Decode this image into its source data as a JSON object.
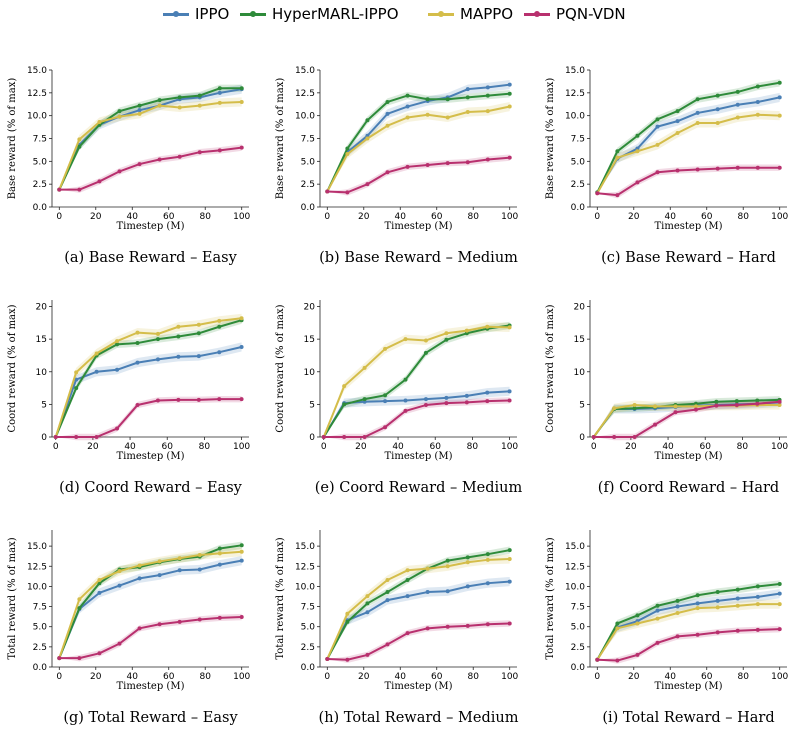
{
  "legend": [
    {
      "name": "IPPO",
      "color": "#4a7fb5"
    },
    {
      "name": "HyperMARL-IPPO",
      "color": "#2e8b3a"
    },
    {
      "name": "MAPPO",
      "color": "#d4bd4a"
    },
    {
      "name": "PQN-VDN",
      "color": "#b8306e"
    }
  ],
  "chart_data": [
    {
      "type": "line",
      "caption": "(a) Base Reward – Easy",
      "xlabel": "Timestep (M)",
      "ylabel": "Base reward (% of max)",
      "xlim": [
        -4,
        104
      ],
      "ylim": [
        0,
        15
      ],
      "xticks": [
        0,
        20,
        40,
        60,
        80,
        100
      ],
      "yticks": [
        0,
        2.5,
        5,
        7.5,
        10,
        12.5,
        15
      ],
      "ytick_labels": [
        "0.0",
        "2.5",
        "5.0",
        "7.5",
        "10.0",
        "12.5",
        "15.0"
      ],
      "x": [
        0,
        11,
        22,
        33,
        44,
        55,
        66,
        77,
        88,
        100
      ],
      "series": [
        {
          "name": "IPPO",
          "values": [
            1.9,
            6.8,
            9.0,
            9.9,
            10.6,
            11.1,
            11.8,
            12.0,
            12.5,
            12.9
          ]
        },
        {
          "name": "HyperMARL-IPPO",
          "values": [
            1.9,
            6.6,
            9.0,
            10.5,
            11.1,
            11.7,
            12.0,
            12.2,
            13.0,
            13.0
          ]
        },
        {
          "name": "MAPPO",
          "values": [
            1.9,
            7.4,
            9.3,
            9.9,
            10.2,
            11.1,
            10.9,
            11.1,
            11.4,
            11.5
          ]
        },
        {
          "name": "PQN-VDN",
          "values": [
            1.9,
            1.9,
            2.8,
            3.9,
            4.7,
            5.2,
            5.5,
            6.0,
            6.2,
            6.5
          ]
        }
      ]
    },
    {
      "type": "line",
      "caption": "(b) Base Reward – Medium",
      "xlabel": "Timestep (M)",
      "ylabel": "Base reward (% of max)",
      "xlim": [
        -4,
        104
      ],
      "ylim": [
        0,
        15
      ],
      "xticks": [
        0,
        20,
        40,
        60,
        80,
        100
      ],
      "yticks": [
        0,
        2.5,
        5,
        7.5,
        10,
        12.5,
        15
      ],
      "ytick_labels": [
        "0.0",
        "2.5",
        "5.0",
        "7.5",
        "10.0",
        "12.5",
        "15.0"
      ],
      "x": [
        0,
        11,
        22,
        33,
        44,
        55,
        66,
        77,
        88,
        100
      ],
      "series": [
        {
          "name": "IPPO",
          "values": [
            1.7,
            6.0,
            7.8,
            10.2,
            11.0,
            11.6,
            12.0,
            12.9,
            13.1,
            13.4
          ]
        },
        {
          "name": "HyperMARL-IPPO",
          "values": [
            1.7,
            6.4,
            9.5,
            11.5,
            12.2,
            11.8,
            11.8,
            12.0,
            12.2,
            12.4
          ]
        },
        {
          "name": "MAPPO",
          "values": [
            1.7,
            5.8,
            7.5,
            8.9,
            9.8,
            10.1,
            9.8,
            10.4,
            10.5,
            11.0
          ]
        },
        {
          "name": "PQN-VDN",
          "values": [
            1.7,
            1.6,
            2.5,
            3.8,
            4.4,
            4.6,
            4.8,
            4.9,
            5.2,
            5.4
          ]
        }
      ]
    },
    {
      "type": "line",
      "caption": "(c) Base Reward – Hard",
      "xlabel": "Timestep (M)",
      "ylabel": "Base reward (% of max)",
      "xlim": [
        -4,
        104
      ],
      "ylim": [
        0,
        15
      ],
      "xticks": [
        0,
        20,
        40,
        60,
        80,
        100
      ],
      "yticks": [
        0,
        2.5,
        5,
        7.5,
        10,
        12.5,
        15
      ],
      "ytick_labels": [
        "0.0",
        "2.5",
        "5.0",
        "7.5",
        "10.0",
        "12.5",
        "15.0"
      ],
      "x": [
        0,
        11,
        22,
        33,
        44,
        55,
        66,
        77,
        88,
        100
      ],
      "series": [
        {
          "name": "IPPO",
          "values": [
            1.6,
            5.3,
            6.4,
            8.8,
            9.4,
            10.3,
            10.7,
            11.2,
            11.5,
            12.0
          ]
        },
        {
          "name": "HyperMARL-IPPO",
          "values": [
            1.6,
            6.1,
            7.8,
            9.6,
            10.5,
            11.8,
            12.2,
            12.6,
            13.2,
            13.6
          ]
        },
        {
          "name": "MAPPO",
          "values": [
            1.5,
            5.4,
            6.1,
            6.8,
            8.1,
            9.2,
            9.2,
            9.8,
            10.1,
            10.0
          ]
        },
        {
          "name": "PQN-VDN",
          "values": [
            1.5,
            1.3,
            2.7,
            3.8,
            4.0,
            4.1,
            4.2,
            4.3,
            4.3,
            4.3
          ]
        }
      ]
    },
    {
      "type": "line",
      "caption": "(d) Coord Reward – Easy",
      "xlabel": "Timestep (M)",
      "ylabel": "Coord reward (% of max)",
      "xlim": [
        -2,
        104
      ],
      "ylim": [
        0,
        21
      ],
      "xticks": [
        0,
        20,
        40,
        60,
        80,
        100
      ],
      "yticks": [
        0,
        5,
        10,
        15,
        20
      ],
      "ytick_labels": [
        "0",
        "5",
        "10",
        "15",
        "20"
      ],
      "x": [
        0,
        11,
        22,
        33,
        44,
        55,
        66,
        77,
        88,
        100
      ],
      "series": [
        {
          "name": "IPPO",
          "values": [
            0.0,
            8.8,
            10.0,
            10.3,
            11.4,
            11.9,
            12.3,
            12.4,
            13.0,
            13.8
          ]
        },
        {
          "name": "HyperMARL-IPPO",
          "values": [
            0.0,
            7.5,
            12.5,
            14.2,
            14.4,
            15.0,
            15.4,
            15.9,
            16.9,
            17.9
          ]
        },
        {
          "name": "MAPPO",
          "values": [
            0.0,
            9.9,
            12.8,
            14.7,
            16.0,
            15.8,
            16.9,
            17.2,
            17.8,
            18.2
          ]
        },
        {
          "name": "PQN-VDN",
          "values": [
            0.0,
            0.0,
            0.0,
            1.3,
            4.9,
            5.6,
            5.7,
            5.7,
            5.8,
            5.8
          ]
        }
      ]
    },
    {
      "type": "line",
      "caption": "(e) Coord Reward – Medium",
      "xlabel": "Timestep (M)",
      "ylabel": "Coord reward (% of max)",
      "xlim": [
        -2,
        104
      ],
      "ylim": [
        0,
        21
      ],
      "xticks": [
        0,
        20,
        40,
        60,
        80,
        100
      ],
      "yticks": [
        0,
        5,
        10,
        15,
        20
      ],
      "ytick_labels": [
        "0",
        "5",
        "10",
        "15",
        "20"
      ],
      "x": [
        0,
        11,
        22,
        33,
        44,
        55,
        66,
        77,
        88,
        100
      ],
      "series": [
        {
          "name": "IPPO",
          "values": [
            0.0,
            5.2,
            5.4,
            5.5,
            5.6,
            5.8,
            6.0,
            6.3,
            6.8,
            7.0
          ]
        },
        {
          "name": "HyperMARL-IPPO",
          "values": [
            0.0,
            5.0,
            5.8,
            6.4,
            8.8,
            12.9,
            14.9,
            15.9,
            16.6,
            17.1
          ]
        },
        {
          "name": "MAPPO",
          "values": [
            0.0,
            7.8,
            10.6,
            13.5,
            15.0,
            14.8,
            15.9,
            16.3,
            16.9,
            16.8
          ]
        },
        {
          "name": "PQN-VDN",
          "values": [
            0.0,
            0.0,
            0.0,
            1.5,
            4.0,
            4.9,
            5.2,
            5.3,
            5.5,
            5.6
          ]
        }
      ]
    },
    {
      "type": "line",
      "caption": "(f) Coord Reward – Hard",
      "xlabel": "Timestep (M)",
      "ylabel": "Coord reward (% of max)",
      "xlim": [
        -2,
        104
      ],
      "ylim": [
        0,
        21
      ],
      "xticks": [
        0,
        20,
        40,
        60,
        80,
        100
      ],
      "yticks": [
        0,
        5,
        10,
        15,
        20
      ],
      "ytick_labels": [
        "0",
        "5",
        "10",
        "15",
        "20"
      ],
      "x": [
        0,
        11,
        22,
        33,
        44,
        55,
        66,
        77,
        88,
        100
      ],
      "series": [
        {
          "name": "IPPO",
          "values": [
            0.0,
            4.3,
            4.3,
            4.4,
            4.6,
            4.8,
            4.9,
            5.0,
            5.1,
            5.3
          ]
        },
        {
          "name": "HyperMARL-IPPO",
          "values": [
            0.0,
            4.3,
            4.4,
            4.6,
            4.9,
            5.1,
            5.4,
            5.5,
            5.6,
            5.7
          ]
        },
        {
          "name": "MAPPO",
          "values": [
            0.0,
            4.4,
            4.9,
            4.7,
            4.7,
            4.7,
            4.8,
            4.8,
            4.9,
            4.9
          ]
        },
        {
          "name": "PQN-VDN",
          "values": [
            0.0,
            0.0,
            0.0,
            1.9,
            3.8,
            4.2,
            4.8,
            4.9,
            5.1,
            5.4
          ]
        }
      ]
    },
    {
      "type": "line",
      "caption": "(g) Total Reward – Easy",
      "xlabel": "Timestep (M)",
      "ylabel": "Total reward (% of max)",
      "xlim": [
        -4,
        104
      ],
      "ylim": [
        0,
        17
      ],
      "xticks": [
        0,
        20,
        40,
        60,
        80,
        100
      ],
      "yticks": [
        0,
        2.5,
        5,
        7.5,
        10,
        12.5,
        15
      ],
      "ytick_labels": [
        "0.0",
        "2.5",
        "5.0",
        "7.5",
        "10.0",
        "12.5",
        "15.0"
      ],
      "x": [
        0,
        11,
        22,
        33,
        44,
        55,
        66,
        77,
        88,
        100
      ],
      "series": [
        {
          "name": "IPPO",
          "values": [
            1.1,
            7.2,
            9.2,
            10.1,
            11.0,
            11.4,
            12.0,
            12.1,
            12.7,
            13.2
          ]
        },
        {
          "name": "HyperMARL-IPPO",
          "values": [
            1.1,
            7.3,
            10.4,
            12.1,
            12.4,
            13.0,
            13.4,
            13.7,
            14.7,
            15.1
          ]
        },
        {
          "name": "MAPPO",
          "values": [
            1.1,
            8.4,
            10.8,
            11.9,
            12.6,
            13.1,
            13.5,
            13.9,
            14.1,
            14.3
          ]
        },
        {
          "name": "PQN-VDN",
          "values": [
            1.1,
            1.1,
            1.7,
            2.9,
            4.8,
            5.3,
            5.6,
            5.9,
            6.1,
            6.2
          ]
        }
      ]
    },
    {
      "type": "line",
      "caption": "(h) Total Reward – Medium",
      "xlabel": "Timestep (M)",
      "ylabel": "Total reward (% of max)",
      "xlim": [
        -4,
        104
      ],
      "ylim": [
        0,
        17
      ],
      "xticks": [
        0,
        20,
        40,
        60,
        80,
        100
      ],
      "yticks": [
        0,
        2.5,
        5,
        7.5,
        10,
        12.5,
        15
      ],
      "ytick_labels": [
        "0.0",
        "2.5",
        "5.0",
        "7.5",
        "10.0",
        "12.5",
        "15.0"
      ],
      "x": [
        0,
        11,
        22,
        33,
        44,
        55,
        66,
        77,
        88,
        100
      ],
      "series": [
        {
          "name": "IPPO",
          "values": [
            1.0,
            5.8,
            6.8,
            8.3,
            8.8,
            9.3,
            9.4,
            10.0,
            10.4,
            10.6
          ]
        },
        {
          "name": "HyperMARL-IPPO",
          "values": [
            1.0,
            5.6,
            7.9,
            9.3,
            10.8,
            12.2,
            13.2,
            13.6,
            14.0,
            14.5
          ]
        },
        {
          "name": "MAPPO",
          "values": [
            1.0,
            6.6,
            8.8,
            10.8,
            12.0,
            12.2,
            12.5,
            13.0,
            13.3,
            13.4
          ]
        },
        {
          "name": "PQN-VDN",
          "values": [
            1.0,
            0.9,
            1.5,
            2.8,
            4.2,
            4.8,
            5.0,
            5.1,
            5.3,
            5.4
          ]
        }
      ]
    },
    {
      "type": "line",
      "caption": "(i) Total Reward – Hard",
      "xlabel": "Timestep (M)",
      "ylabel": "Total reward (% of max)",
      "xlim": [
        -4,
        104
      ],
      "ylim": [
        0,
        17
      ],
      "xticks": [
        0,
        20,
        40,
        60,
        80,
        100
      ],
      "yticks": [
        0,
        2.5,
        5,
        7.5,
        10,
        12.5,
        15
      ],
      "ytick_labels": [
        "0.0",
        "2.5",
        "5.0",
        "7.5",
        "10.0",
        "12.5",
        "15.0"
      ],
      "x": [
        0,
        11,
        22,
        33,
        44,
        55,
        66,
        77,
        88,
        100
      ],
      "series": [
        {
          "name": "IPPO",
          "values": [
            0.9,
            4.9,
            5.7,
            7.0,
            7.5,
            7.9,
            8.2,
            8.5,
            8.7,
            9.1
          ]
        },
        {
          "name": "HyperMARL-IPPO",
          "values": [
            0.9,
            5.4,
            6.4,
            7.6,
            8.2,
            8.9,
            9.3,
            9.6,
            10.0,
            10.3
          ]
        },
        {
          "name": "MAPPO",
          "values": [
            0.9,
            4.8,
            5.4,
            6.0,
            6.7,
            7.3,
            7.4,
            7.6,
            7.8,
            7.8
          ]
        },
        {
          "name": "PQN-VDN",
          "values": [
            0.9,
            0.8,
            1.5,
            3.0,
            3.8,
            4.0,
            4.3,
            4.5,
            4.6,
            4.7
          ]
        }
      ]
    }
  ]
}
